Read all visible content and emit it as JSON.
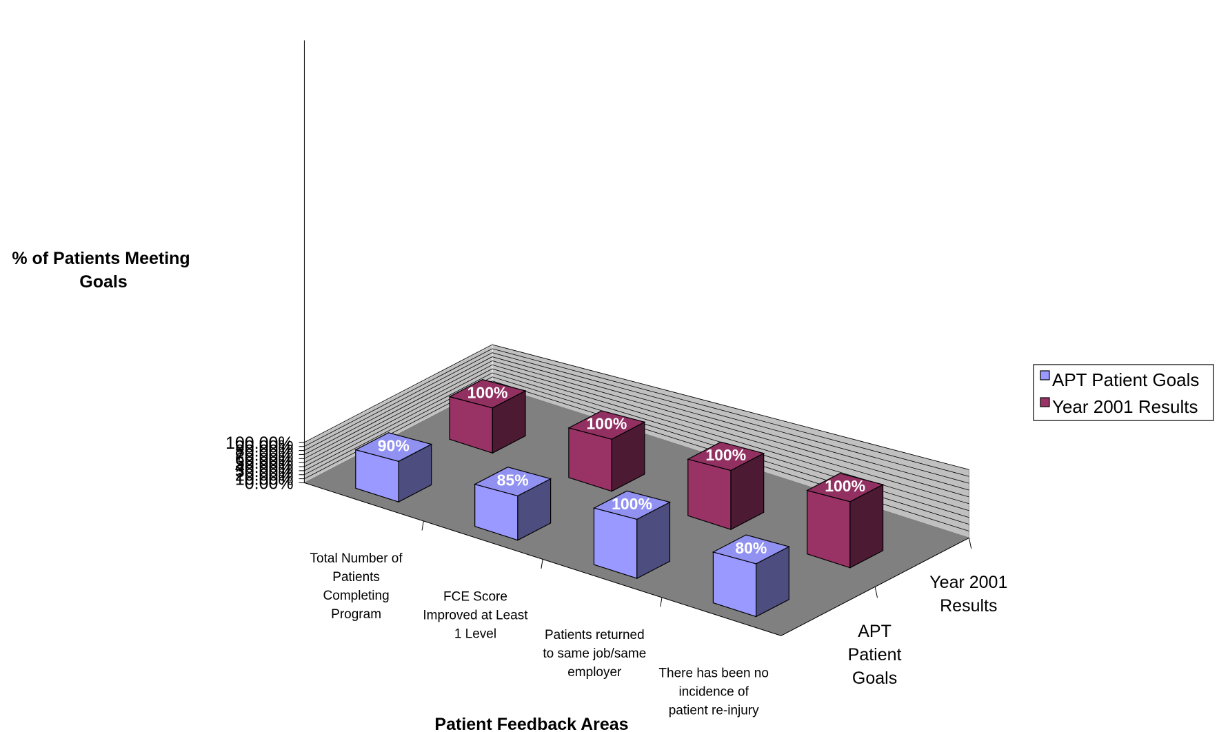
{
  "chart_data": {
    "type": "bar",
    "subtype": "3d-column",
    "categories": [
      "Total Number of Patients Completing Program",
      "FCE Score Improved at Least 1 Level",
      "Patients returned to same job/same employer",
      "There has been no incidence of patient re-injury"
    ],
    "category_label_lines": [
      [
        "Total Number of",
        "Patients",
        "Completing",
        "Program"
      ],
      [
        "FCE Score",
        "Improved at Least",
        "1 Level"
      ],
      [
        "Patients returned",
        "to same job/same",
        "employer"
      ],
      [
        "There has been no",
        "incidence of",
        "patient re-injury"
      ]
    ],
    "series": [
      {
        "name": "APT Patient Goals",
        "values": [
          90,
          85,
          100,
          80
        ],
        "labels": [
          "90%",
          "85%",
          "100%",
          "80%"
        ],
        "color": "#9999ff"
      },
      {
        "name": "Year 2001 Results",
        "values": [
          100,
          100,
          100,
          100
        ],
        "labels": [
          "100%",
          "100%",
          "100%",
          "100%"
        ],
        "color": "#993366"
      }
    ],
    "series_axis_labels": [
      [
        "APT",
        "Patient",
        "Goals"
      ],
      [
        "Year 2001",
        "Results"
      ]
    ],
    "y_ticks": [
      "0.00%",
      "10.00%",
      "20.00%",
      "30.00%",
      "40.00%",
      "50.00%",
      "60.00%",
      "70.00%",
      "80.00%",
      "90.00%",
      "100.00%"
    ],
    "ylim": [
      0,
      100
    ],
    "xlabel": "Patient Feedback Areas",
    "ylabel_lines": [
      "% of Patients Meeting",
      "Goals"
    ],
    "grid": true,
    "legend": "right",
    "colors": {
      "wall": "#c0c0c0",
      "floor": "#808080"
    }
  }
}
